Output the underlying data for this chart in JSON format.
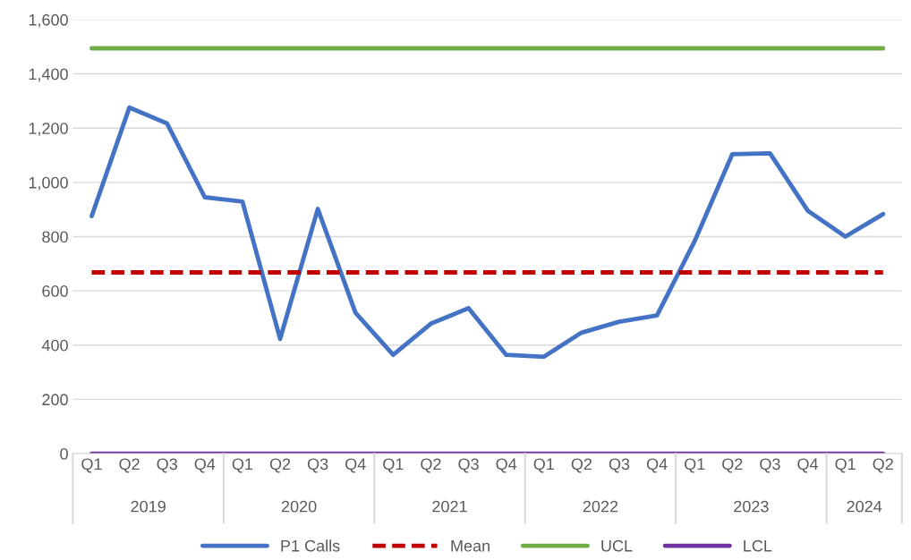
{
  "chart_data": {
    "type": "line",
    "categories": [
      "Q1",
      "Q2",
      "Q3",
      "Q4",
      "Q1",
      "Q2",
      "Q3",
      "Q4",
      "Q1",
      "Q2",
      "Q3",
      "Q4",
      "Q1",
      "Q2",
      "Q3",
      "Q4",
      "Q1",
      "Q2",
      "Q3",
      "Q4",
      "Q1",
      "Q2"
    ],
    "series": [
      {
        "name": "P1 Calls",
        "color": "#4472c4",
        "values": [
          876,
          1276,
          1217,
          945,
          929,
          423,
          902,
          519,
          364,
          479,
          536,
          364,
          357,
          446,
          486,
          509,
          783,
          1104,
          1107,
          896,
          800,
          883
        ]
      },
      {
        "name": "Mean",
        "color": "#c00000",
        "line_style": "dashed",
        "values": [
          668,
          668,
          668,
          668,
          668,
          668,
          668,
          668,
          668,
          668,
          668,
          668,
          668,
          668,
          668,
          668,
          668,
          668,
          668,
          668,
          668,
          668
        ]
      },
      {
        "name": "UCL",
        "color": "#70ad47",
        "values": [
          1494,
          1494,
          1494,
          1494,
          1494,
          1494,
          1494,
          1494,
          1494,
          1494,
          1494,
          1494,
          1494,
          1494,
          1494,
          1494,
          1494,
          1494,
          1494,
          1494,
          1494,
          1494
        ]
      },
      {
        "name": "LCL",
        "color": "#7030a0",
        "values": [
          0,
          0,
          0,
          0,
          0,
          0,
          0,
          0,
          0,
          0,
          0,
          0,
          0,
          0,
          0,
          0,
          0,
          0,
          0,
          0,
          0,
          0
        ]
      }
    ],
    "annotations": [
      "2019",
      "2020",
      "2021",
      "2022",
      "2023",
      "2024"
    ],
    "ylim": [
      0,
      1600
    ],
    "yticks": [
      {
        "value": 0,
        "label": "0"
      },
      {
        "value": 200,
        "label": "200"
      },
      {
        "value": 400,
        "label": "400"
      },
      {
        "value": 600,
        "label": "600"
      },
      {
        "value": 800,
        "label": "800"
      },
      {
        "value": 1000,
        "label": "1,000"
      },
      {
        "value": 1200,
        "label": "1,200"
      },
      {
        "value": 1400,
        "label": "1,400"
      },
      {
        "value": 1600,
        "label": "1,600"
      }
    ],
    "grid": "y",
    "legend": "bottom",
    "marker": "none",
    "line_style": "solid"
  }
}
